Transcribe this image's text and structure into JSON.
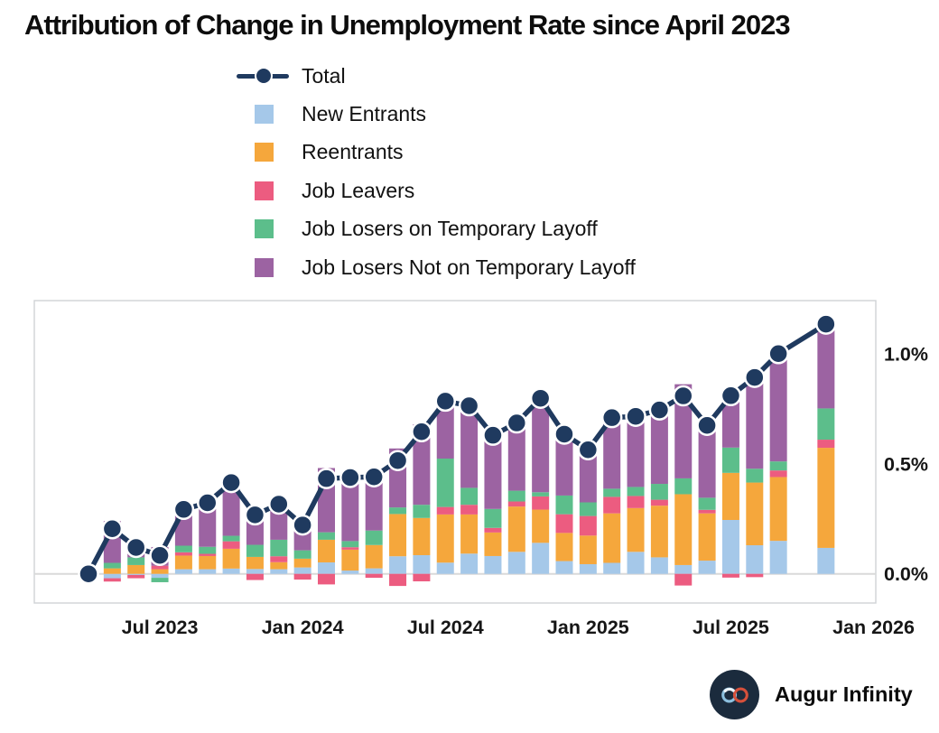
{
  "title": "Attribution of Change in Unemployment Rate since April 2023",
  "branding": {
    "name": "Augur Infinity",
    "logo_icon": "infinity-icon",
    "logo_bg": "#1b2b3d",
    "logo_left_loop": "#8cc0df",
    "logo_right_loop": "#d6503b"
  },
  "colors": {
    "background": "#ffffff",
    "plot_border": "#cfd2d6",
    "zero_line": "#d9d9d9",
    "text": "#161616"
  },
  "chart_data": {
    "type": "bar",
    "subtype": "stacked-bars-with-total-line",
    "unit": "percentage points",
    "grid": "zero-line-only",
    "legend_position": "top-left",
    "y_axis": {
      "side": "right",
      "range": [
        -0.133,
        1.243
      ],
      "ticks": [
        {
          "label": "0.0%",
          "value": 0
        },
        {
          "label": "0.5%",
          "value": 0.5
        },
        {
          "label": "1.0%",
          "value": 1.0
        }
      ]
    },
    "x_axis": {
      "ticks": [
        {
          "label": "Jul 2023",
          "slot": 3
        },
        {
          "label": "Jan 2024",
          "slot": 9
        },
        {
          "label": "Jul 2024",
          "slot": 15
        },
        {
          "label": "Jan 2025",
          "slot": 21
        },
        {
          "label": "Jul 2025",
          "slot": 27
        },
        {
          "label": "Jan 2026",
          "slot": 33
        }
      ]
    },
    "line_series": {
      "name": "Total",
      "color": "#1f3a5f",
      "marker": "filled-circle-white-ring"
    },
    "series": [
      {
        "key": "ne",
        "name": "New Entrants",
        "color": "#a5c8e9"
      },
      {
        "key": "re",
        "name": "Reentrants",
        "color": "#f5a73c"
      },
      {
        "key": "jlv",
        "name": "Job Leavers",
        "color": "#ec5c80"
      },
      {
        "key": "jlt",
        "name": "Job Losers on Temporary Layoff",
        "color": "#5cbe8b"
      },
      {
        "key": "jlnt",
        "name": "Job Losers Not on Temporary Layoff",
        "color": "#9c63a2"
      }
    ],
    "months": [
      {
        "label": "Apr 2023",
        "ne": 0,
        "re": 0,
        "jlv": 0,
        "jlt": 0,
        "jlnt": 0
      },
      {
        "label": "May 2023",
        "ne": -0.02,
        "re": 0.025,
        "jlv": -0.015,
        "jlt": 0.025,
        "jlnt": 0.19
      },
      {
        "label": "Jun 2023",
        "ne": -0.005,
        "re": 0.04,
        "jlv": -0.015,
        "jlt": 0.035,
        "jlnt": 0.065
      },
      {
        "label": "Jul 2023",
        "ne": -0.018,
        "re": 0.021,
        "jlv": 0.016,
        "jlt": -0.02,
        "jlnt": 0.085
      },
      {
        "label": "Aug 2023",
        "ne": 0.021,
        "re": 0.062,
        "jlv": 0.015,
        "jlt": 0.03,
        "jlnt": 0.165
      },
      {
        "label": "Sep 2023",
        "ne": 0.021,
        "re": 0.06,
        "jlv": 0.01,
        "jlt": 0.032,
        "jlnt": 0.2
      },
      {
        "label": "Oct 2023",
        "ne": 0.024,
        "re": 0.09,
        "jlv": 0.034,
        "jlt": 0.025,
        "jlnt": 0.242
      },
      {
        "label": "Nov 2023",
        "ne": 0.022,
        "re": 0.055,
        "jlv": -0.028,
        "jlt": 0.055,
        "jlnt": 0.164
      },
      {
        "label": "Dec 2023",
        "ne": 0.021,
        "re": 0.032,
        "jlv": 0.027,
        "jlt": 0.075,
        "jlnt": 0.162
      },
      {
        "label": "Jan 2024",
        "ne": 0.029,
        "re": 0.04,
        "jlv": -0.026,
        "jlt": 0.038,
        "jlnt": 0.141
      },
      {
        "label": "Feb 2024",
        "ne": 0.052,
        "re": 0.103,
        "jlv": -0.048,
        "jlt": 0.034,
        "jlnt": 0.292
      },
      {
        "label": "Mar 2024",
        "ne": 0.015,
        "re": 0.095,
        "jlv": 0.011,
        "jlt": 0.028,
        "jlnt": 0.289
      },
      {
        "label": "Apr 2024",
        "ne": 0.025,
        "re": 0.106,
        "jlv": -0.018,
        "jlt": 0.066,
        "jlnt": 0.262
      },
      {
        "label": "May 2024",
        "ne": 0.08,
        "re": 0.192,
        "jlv": -0.055,
        "jlt": 0.03,
        "jlnt": 0.268
      },
      {
        "label": "Jun 2024",
        "ne": 0.085,
        "re": 0.169,
        "jlv": -0.034,
        "jlt": 0.06,
        "jlnt": 0.366
      },
      {
        "label": "Jul 2024",
        "ne": 0.051,
        "re": 0.219,
        "jlv": 0.034,
        "jlt": 0.22,
        "jlnt": 0.261
      },
      {
        "label": "Aug 2024",
        "ne": 0.092,
        "re": 0.178,
        "jlv": 0.044,
        "jlt": 0.077,
        "jlnt": 0.373
      },
      {
        "label": "Sep 2024",
        "ne": 0.081,
        "re": 0.107,
        "jlv": 0.021,
        "jlt": 0.086,
        "jlnt": 0.335
      },
      {
        "label": "Oct 2024",
        "ne": 0.1,
        "re": 0.206,
        "jlv": 0.023,
        "jlt": 0.049,
        "jlnt": 0.308
      },
      {
        "label": "Nov 2024",
        "ne": 0.141,
        "re": 0.151,
        "jlv": 0.06,
        "jlt": 0.019,
        "jlnt": 0.427
      },
      {
        "label": "Dec 2024",
        "ne": 0.058,
        "re": 0.128,
        "jlv": 0.085,
        "jlt": 0.085,
        "jlnt": 0.279
      },
      {
        "label": "Jan 2025",
        "ne": 0.044,
        "re": 0.13,
        "jlv": 0.089,
        "jlt": 0.062,
        "jlnt": 0.239
      },
      {
        "label": "Feb 2025",
        "ne": 0.05,
        "re": 0.225,
        "jlv": 0.075,
        "jlt": 0.037,
        "jlnt": 0.323
      },
      {
        "label": "Mar 2025",
        "ne": 0.1,
        "re": 0.199,
        "jlv": 0.055,
        "jlt": 0.041,
        "jlnt": 0.321
      },
      {
        "label": "Apr 2025",
        "ne": 0.075,
        "re": 0.235,
        "jlv": 0.027,
        "jlt": 0.072,
        "jlnt": 0.336
      },
      {
        "label": "May 2025",
        "ne": 0.04,
        "re": 0.322,
        "jlv": -0.053,
        "jlt": 0.072,
        "jlnt": 0.428
      },
      {
        "label": "Jun 2025",
        "ne": 0.06,
        "re": 0.215,
        "jlv": 0.016,
        "jlt": 0.055,
        "jlnt": 0.329
      },
      {
        "label": "Jul 2025",
        "ne": 0.245,
        "re": 0.214,
        "jlv": -0.017,
        "jlt": 0.115,
        "jlnt": 0.253
      },
      {
        "label": "Aug 2025",
        "ne": 0.13,
        "re": 0.285,
        "jlv": -0.015,
        "jlt": 0.063,
        "jlnt": 0.43
      },
      {
        "label": "Sep 2025",
        "ne": 0.15,
        "re": 0.29,
        "jlv": 0.03,
        "jlt": 0.041,
        "jlnt": 0.49
      },
      {
        "label": "Oct 2025",
        "missing": true
      },
      {
        "label": "Nov 2025",
        "ne": 0.118,
        "re": 0.455,
        "jlv": 0.037,
        "jlt": 0.142,
        "jlnt": 0.383
      }
    ]
  }
}
